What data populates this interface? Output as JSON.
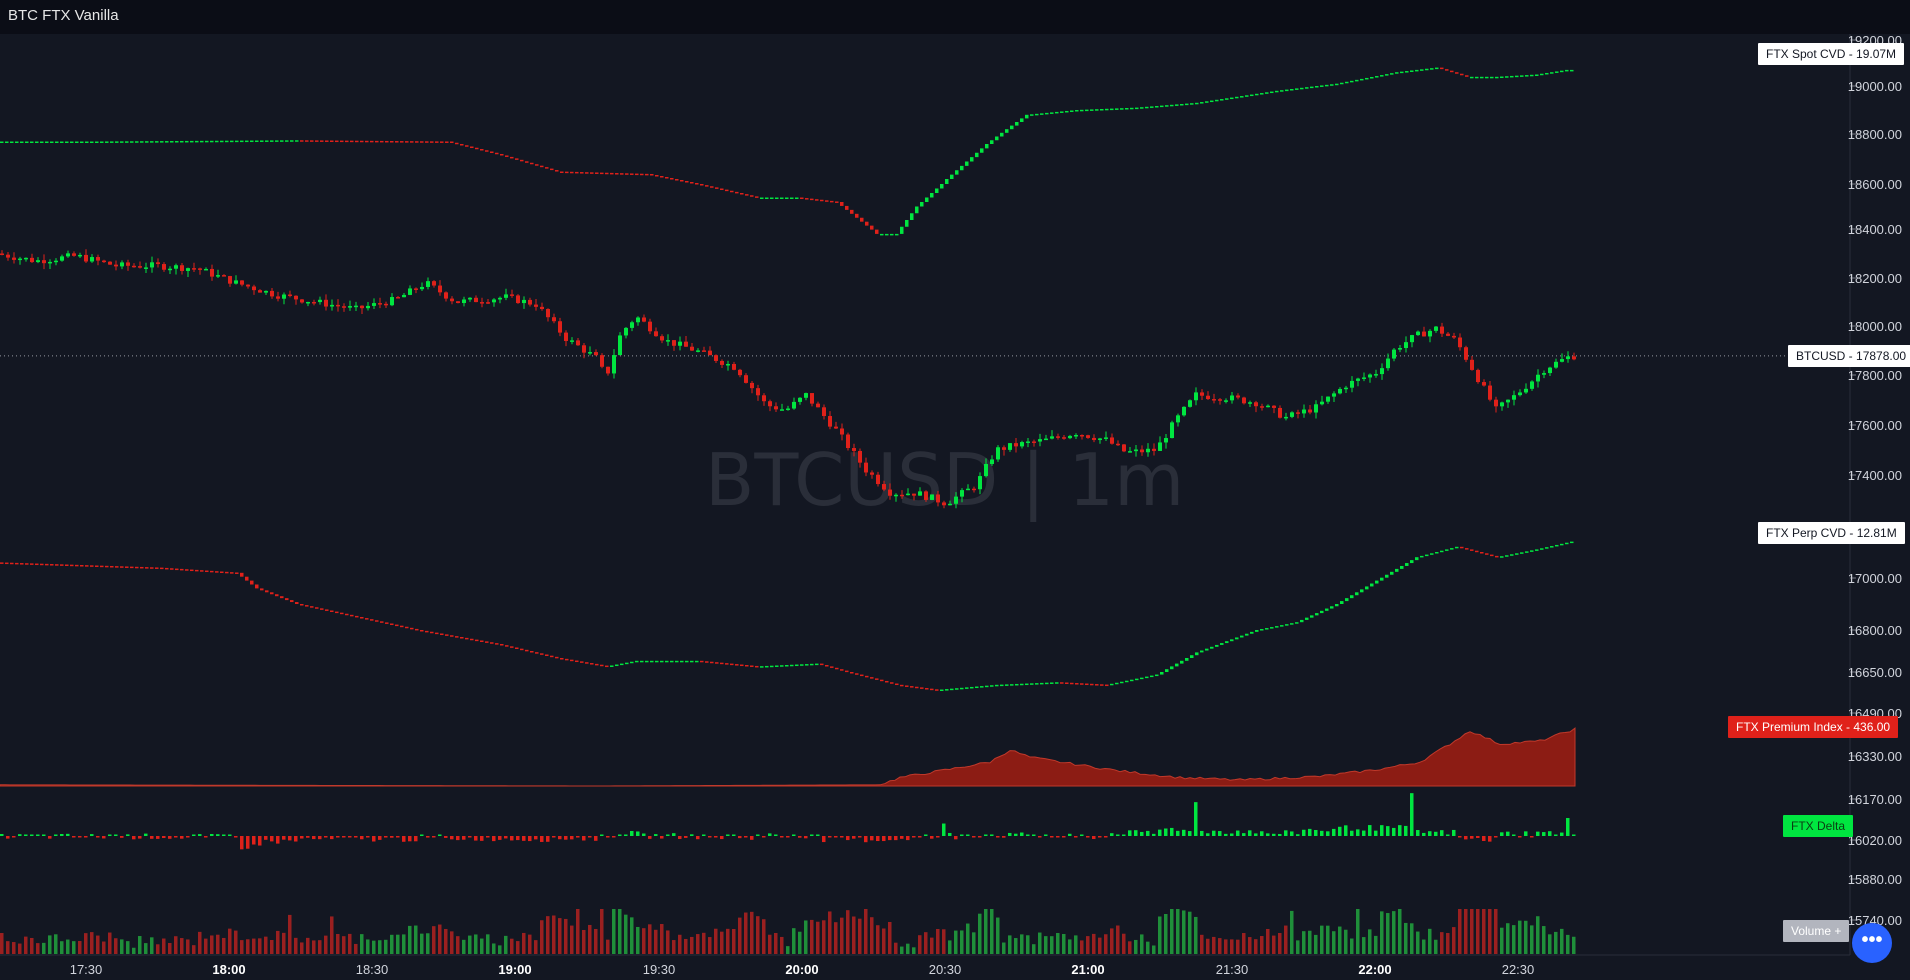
{
  "window": {
    "title": "BTC FTX Vanilla"
  },
  "watermark": "BTCUSD | 1m",
  "labels": {
    "spot_cvd": "FTX Spot CVD",
    "spot_cvd_value": "19.07M",
    "btcusd": "BTCUSD",
    "btcusd_value": "17878.00",
    "perp_cvd": "FTX Perp CVD",
    "perp_cvd_value": "12.81M",
    "premium_index": "FTX Premium Index",
    "premium_index_value": "436.00",
    "delta": "FTX Delta",
    "volume": "Volume +"
  },
  "colors": {
    "background": "#131722",
    "up": "#00e640",
    "down": "#e0211a",
    "premium_fill": "#8c1c14",
    "volume_up": "#1f8f3a",
    "volume_down": "#9b2020"
  },
  "chart_data": {
    "type": "candlestick",
    "title": "BTCUSD | 1m",
    "x_ticks": [
      "17:30",
      "18:00",
      "18:30",
      "19:00",
      "19:30",
      "20:00",
      "20:30",
      "21:00",
      "21:30",
      "22:00",
      "22:30"
    ],
    "bold_x_ticks": [
      "18:00",
      "19:00",
      "20:00",
      "21:00",
      "22:00"
    ],
    "y_ticks": [
      19200,
      19000,
      18800,
      18600,
      18400,
      18200,
      18000,
      17800,
      17600,
      17400,
      17200,
      17000,
      16800,
      16650,
      16490,
      16330,
      16170,
      16020,
      15880,
      15740
    ],
    "ylim": [
      15740,
      19200
    ],
    "last_price": 17878.0,
    "series": [
      {
        "name": "FTX Spot CVD",
        "last_value": "19.07M",
        "path": [
          [
            0,
            18770
          ],
          [
            100,
            18770
          ],
          [
            300,
            18775
          ],
          [
            450,
            18770
          ],
          [
            500,
            18720
          ],
          [
            560,
            18650
          ],
          [
            650,
            18640
          ],
          [
            700,
            18600
          ],
          [
            760,
            18540
          ],
          [
            800,
            18540
          ],
          [
            840,
            18520
          ],
          [
            860,
            18450
          ],
          [
            880,
            18380
          ],
          [
            900,
            18380
          ],
          [
            920,
            18500
          ],
          [
            950,
            18620
          ],
          [
            990,
            18760
          ],
          [
            1030,
            18880
          ],
          [
            1080,
            18900
          ],
          [
            1140,
            18910
          ],
          [
            1200,
            18930
          ],
          [
            1280,
            18980
          ],
          [
            1340,
            19010
          ],
          [
            1400,
            19060
          ],
          [
            1440,
            19080
          ],
          [
            1470,
            19040
          ],
          [
            1500,
            19040
          ],
          [
            1540,
            19050
          ],
          [
            1570,
            19070
          ]
        ]
      },
      {
        "name": "BTCUSD",
        "last_value": "17878.00",
        "path": [
          [
            0,
            18300
          ],
          [
            40,
            18270
          ],
          [
            80,
            18290
          ],
          [
            120,
            18250
          ],
          [
            160,
            18250
          ],
          [
            200,
            18240
          ],
          [
            240,
            18180
          ],
          [
            280,
            18130
          ],
          [
            320,
            18100
          ],
          [
            360,
            18070
          ],
          [
            400,
            18110
          ],
          [
            430,
            18180
          ],
          [
            460,
            18100
          ],
          [
            510,
            18120
          ],
          [
            540,
            18090
          ],
          [
            570,
            17950
          ],
          [
            600,
            17870
          ],
          [
            610,
            17790
          ],
          [
            625,
            17970
          ],
          [
            640,
            18040
          ],
          [
            670,
            17940
          ],
          [
            700,
            17900
          ],
          [
            740,
            17830
          ],
          [
            770,
            17680
          ],
          [
            790,
            17660
          ],
          [
            810,
            17720
          ],
          [
            840,
            17580
          ],
          [
            870,
            17420
          ],
          [
            895,
            17330
          ],
          [
            920,
            17330
          ],
          [
            950,
            17290
          ],
          [
            980,
            17360
          ],
          [
            1000,
            17500
          ],
          [
            1020,
            17520
          ],
          [
            1050,
            17540
          ],
          [
            1080,
            17570
          ],
          [
            1110,
            17540
          ],
          [
            1130,
            17490
          ],
          [
            1160,
            17500
          ],
          [
            1180,
            17620
          ],
          [
            1200,
            17720
          ],
          [
            1230,
            17710
          ],
          [
            1260,
            17690
          ],
          [
            1290,
            17630
          ],
          [
            1320,
            17670
          ],
          [
            1350,
            17760
          ],
          [
            1380,
            17810
          ],
          [
            1400,
            17910
          ],
          [
            1420,
            17960
          ],
          [
            1440,
            17990
          ],
          [
            1460,
            17940
          ],
          [
            1480,
            17800
          ],
          [
            1500,
            17660
          ],
          [
            1520,
            17720
          ],
          [
            1550,
            17830
          ],
          [
            1575,
            17878
          ]
        ]
      },
      {
        "name": "FTX Perp CVD",
        "last_value": "12.81M",
        "path": [
          [
            0,
            17060
          ],
          [
            80,
            17050
          ],
          [
            160,
            17040
          ],
          [
            240,
            17020
          ],
          [
            260,
            16960
          ],
          [
            300,
            16900
          ],
          [
            360,
            16850
          ],
          [
            420,
            16800
          ],
          [
            500,
            16750
          ],
          [
            560,
            16700
          ],
          [
            610,
            16670
          ],
          [
            640,
            16690
          ],
          [
            700,
            16690
          ],
          [
            760,
            16670
          ],
          [
            820,
            16680
          ],
          [
            860,
            16640
          ],
          [
            900,
            16600
          ],
          [
            940,
            16580
          ],
          [
            1000,
            16600
          ],
          [
            1060,
            16610
          ],
          [
            1110,
            16600
          ],
          [
            1160,
            16640
          ],
          [
            1200,
            16720
          ],
          [
            1260,
            16800
          ],
          [
            1300,
            16830
          ],
          [
            1340,
            16900
          ],
          [
            1380,
            16990
          ],
          [
            1420,
            17080
          ],
          [
            1460,
            17120
          ],
          [
            1500,
            17080
          ],
          [
            1540,
            17110
          ],
          [
            1575,
            17140
          ]
        ]
      },
      {
        "name": "FTX Premium Index",
        "last_value": "436.00",
        "path": [
          [
            0,
            2
          ],
          [
            300,
            1
          ],
          [
            600,
            0
          ],
          [
            880,
            2
          ],
          [
            900,
            14
          ],
          [
            950,
            28
          ],
          [
            990,
            40
          ],
          [
            1010,
            60
          ],
          [
            1030,
            48
          ],
          [
            1060,
            40
          ],
          [
            1120,
            25
          ],
          [
            1180,
            14
          ],
          [
            1240,
            10
          ],
          [
            1320,
            16
          ],
          [
            1380,
            28
          ],
          [
            1420,
            40
          ],
          [
            1450,
            70
          ],
          [
            1470,
            92
          ],
          [
            1500,
            70
          ],
          [
            1540,
            75
          ],
          [
            1575,
            95
          ]
        ]
      },
      {
        "name": "FTX Delta"
      },
      {
        "name": "Volume +"
      }
    ]
  }
}
